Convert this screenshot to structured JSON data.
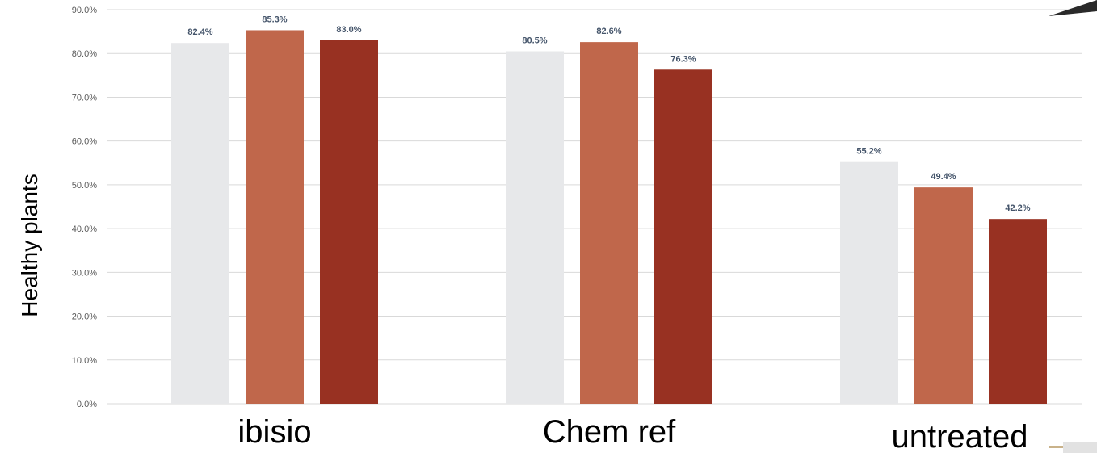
{
  "chart_data": {
    "type": "bar",
    "title": "",
    "ylabel": "Healthy plants",
    "xlabel": "",
    "categories": [
      "ibisio",
      "Chem ref",
      "untreated"
    ],
    "series": [
      {
        "values": [
          82.4,
          80.5,
          55.2
        ],
        "labels": [
          "82.4%",
          "80.5%",
          "55.2%"
        ],
        "color": "#e7e8ea"
      },
      {
        "values": [
          85.3,
          82.6,
          49.4
        ],
        "labels": [
          "85.3%",
          "82.6%",
          "49.4%"
        ],
        "color": "#c0674b"
      },
      {
        "values": [
          83.0,
          76.3,
          42.2
        ],
        "labels": [
          "83.0%",
          "76.3%",
          "42.2%"
        ],
        "color": "#983122"
      }
    ],
    "ylim": [
      0,
      90
    ],
    "yticks": [
      0,
      10,
      20,
      30,
      40,
      50,
      60,
      70,
      80,
      90
    ],
    "ytick_labels": [
      "0.0%",
      "10.0%",
      "20.0%",
      "30.0%",
      "40.0%",
      "50.0%",
      "60.0%",
      "70.0%",
      "80.0%",
      "90.0%"
    ],
    "grid": true,
    "gridline_color": "#d9d9d9"
  }
}
